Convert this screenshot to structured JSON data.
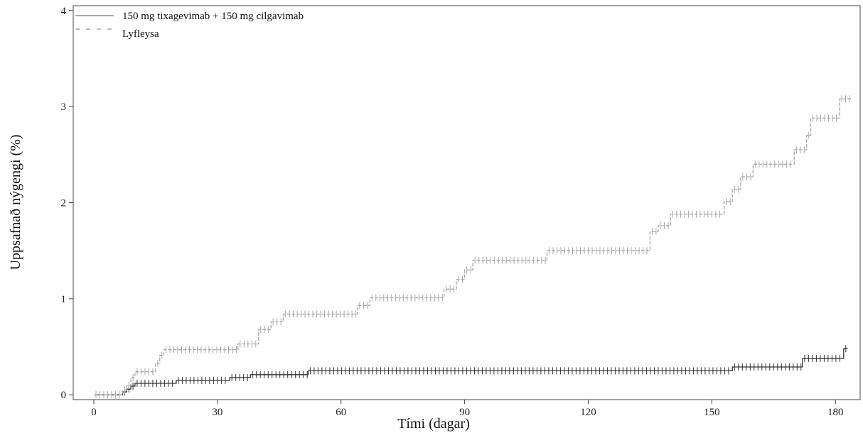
{
  "chart_data": {
    "type": "line",
    "title": "",
    "xlabel": "Tími (dagar)",
    "ylabel": "Uppsafnað nýgengi (%)",
    "xlim": [
      -5,
      186
    ],
    "ylim": [
      -0.05,
      4.05
    ],
    "xticks": [
      0,
      30,
      60,
      90,
      120,
      150,
      180
    ],
    "yticks": [
      0,
      1,
      2,
      3,
      4
    ],
    "grid": false,
    "legend_position": "top-left",
    "series": [
      {
        "name": "150 mg tixagevimab + 150 mg cilgavimab",
        "style": "solid",
        "color": "#333333",
        "steps": [
          [
            0,
            0
          ],
          [
            7,
            0.03
          ],
          [
            8,
            0.06
          ],
          [
            9,
            0.09
          ],
          [
            10,
            0.12
          ],
          [
            20,
            0.15
          ],
          [
            33,
            0.18
          ],
          [
            38,
            0.21
          ],
          [
            52,
            0.25
          ],
          [
            155,
            0.29
          ],
          [
            172,
            0.38
          ],
          [
            182,
            0.48
          ]
        ],
        "x_end": 183
      },
      {
        "name": "Lyfleysa",
        "style": "dashed",
        "color": "#a8a8a8",
        "steps": [
          [
            0,
            0
          ],
          [
            7,
            0.05
          ],
          [
            8,
            0.1
          ],
          [
            9,
            0.18
          ],
          [
            10,
            0.24
          ],
          [
            15,
            0.33
          ],
          [
            16,
            0.41
          ],
          [
            17,
            0.47
          ],
          [
            35,
            0.53
          ],
          [
            40,
            0.68
          ],
          [
            43,
            0.76
          ],
          [
            46,
            0.84
          ],
          [
            64,
            0.93
          ],
          [
            67,
            1.01
          ],
          [
            85,
            1.1
          ],
          [
            88,
            1.2
          ],
          [
            90,
            1.3
          ],
          [
            92,
            1.4
          ],
          [
            110,
            1.5
          ],
          [
            135,
            1.7
          ],
          [
            137,
            1.76
          ],
          [
            140,
            1.88
          ],
          [
            153,
            2.01
          ],
          [
            155,
            2.14
          ],
          [
            157,
            2.27
          ],
          [
            160,
            2.4
          ],
          [
            170,
            2.55
          ],
          [
            173,
            2.7
          ],
          [
            174,
            2.88
          ],
          [
            181,
            3.08
          ]
        ],
        "x_end": 184
      }
    ]
  }
}
